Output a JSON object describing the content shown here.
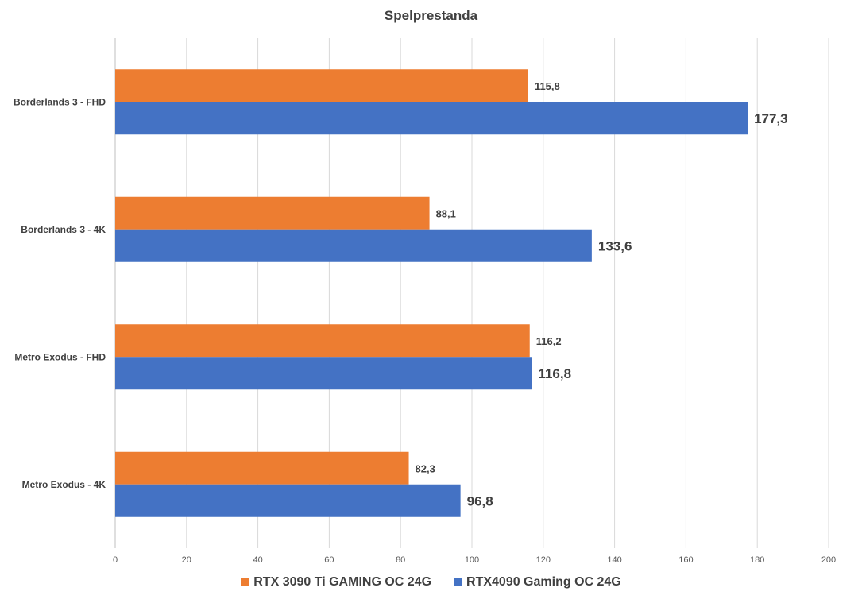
{
  "chart_data": {
    "type": "bar",
    "orientation": "horizontal",
    "title": "Spelprestanda",
    "categories": [
      "Borderlands 3 - FHD",
      "Borderlands 3 - 4K",
      "Metro Exodus - FHD",
      "Metro Exodus - 4K"
    ],
    "series": [
      {
        "name": "RTX 3090 Ti GAMING OC 24G",
        "color": "#ED7D31",
        "values": [
          115.8,
          88.1,
          116.2,
          82.3
        ],
        "value_labels": [
          "115,8",
          "88,1",
          "116,2",
          "82,3"
        ]
      },
      {
        "name": "RTX4090 Gaming OC 24G",
        "color": "#4472C4",
        "values": [
          177.3,
          133.6,
          116.8,
          96.8
        ],
        "value_labels": [
          "177,3",
          "133,6",
          "116,8",
          "96,8"
        ]
      }
    ],
    "xlim": [
      0,
      200
    ],
    "xticks": [
      0,
      20,
      40,
      60,
      80,
      100,
      120,
      140,
      160,
      180,
      200
    ],
    "grid": true,
    "gridline_color": "#D9D9D9",
    "legend_position": "bottom"
  }
}
